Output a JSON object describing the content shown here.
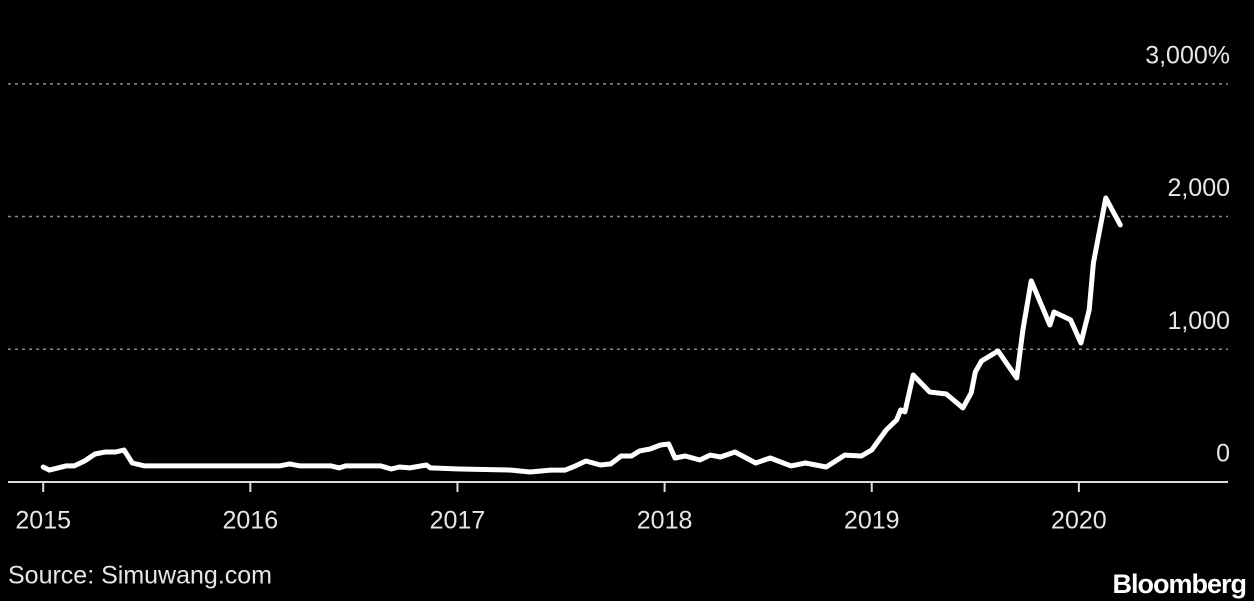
{
  "chart_data": {
    "type": "line",
    "source": "Source: Simuwang.com",
    "brand": "Bloomberg",
    "x": [
      2015.0,
      2015.03,
      2015.11,
      2015.15,
      2015.2,
      2015.25,
      2015.3,
      2015.35,
      2015.39,
      2015.43,
      2015.49,
      2015.76,
      2016.14,
      2016.19,
      2016.24,
      2016.39,
      2016.43,
      2016.46,
      2016.63,
      2016.68,
      2016.72,
      2016.77,
      2016.85,
      2016.87,
      2017.01,
      2017.26,
      2017.35,
      2017.45,
      2017.52,
      2017.57,
      2017.62,
      2017.69,
      2017.74,
      2017.79,
      2017.84,
      2017.88,
      2017.93,
      2017.98,
      2018.02,
      2018.05,
      2018.1,
      2018.17,
      2018.22,
      2018.27,
      2018.34,
      2018.44,
      2018.51,
      2018.61,
      2018.68,
      2018.78,
      2018.87,
      2018.95,
      2019.0,
      2019.07,
      2019.12,
      2019.14,
      2019.16,
      2019.2,
      2019.28,
      2019.36,
      2019.44,
      2019.48,
      2019.5,
      2019.53,
      2019.61,
      2019.7,
      2019.73,
      2019.77,
      2019.86,
      2019.88,
      2019.96,
      2020.01,
      2020.05,
      2020.07,
      2020.13,
      2020.2
    ],
    "series": [
      {
        "color": "#ffffff",
        "values": [
          113,
          90,
          121,
          121,
          158,
          211,
          226,
          226,
          241,
          143,
          121,
          121,
          121,
          136,
          121,
          121,
          106,
          121,
          121,
          98,
          113,
          106,
          128,
          106,
          98,
          90,
          75,
          90,
          90,
          121,
          158,
          128,
          136,
          196,
          196,
          234,
          249,
          279,
          286,
          181,
          196,
          166,
          203,
          188,
          226,
          143,
          181,
          121,
          143,
          113,
          203,
          196,
          241,
          392,
          467,
          543,
          528,
          806,
          678,
          663,
          558,
          671,
          829,
          912,
          987,
          784,
          1146,
          1515,
          1183,
          1281,
          1221,
          1047,
          1296,
          1650,
          2140,
          1937
        ]
      }
    ],
    "xlim": [
      2014.83,
      2020.72
    ],
    "xticks": [
      2015,
      2016,
      2017,
      2018,
      2019,
      2020
    ],
    "ylim": [
      0,
      3300
    ],
    "yticks": [
      0,
      {
        "value": 1000,
        "label": "1,000"
      },
      {
        "value": 2000,
        "label": "2,000"
      },
      {
        "value": 3000,
        "label": "3,000%"
      }
    ],
    "grid": true
  }
}
